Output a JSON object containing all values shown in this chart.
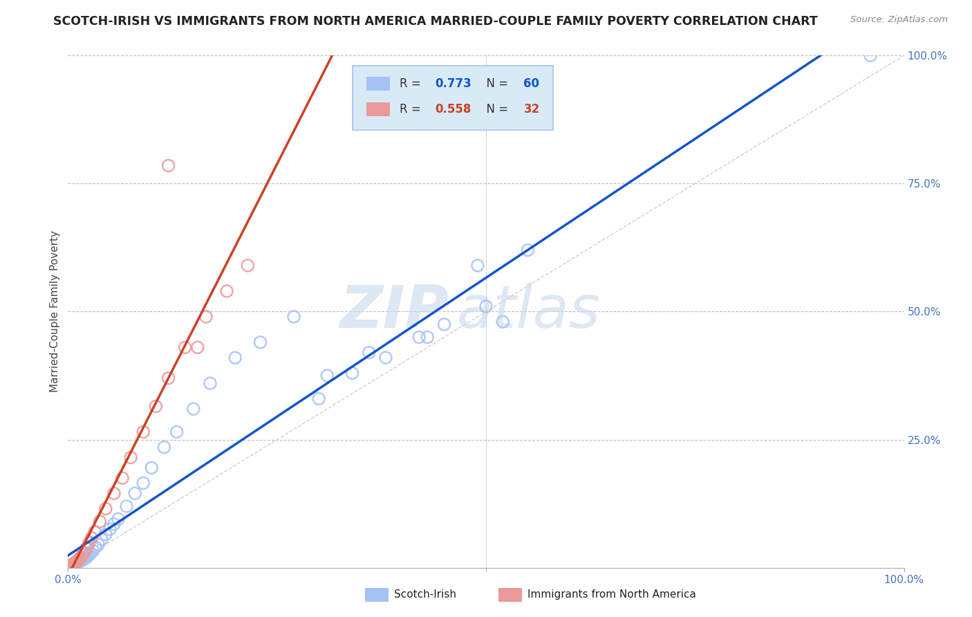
{
  "title": "SCOTCH-IRISH VS IMMIGRANTS FROM NORTH AMERICA MARRIED-COUPLE FAMILY POVERTY CORRELATION CHART",
  "source": "Source: ZipAtlas.com",
  "ylabel": "Married-Couple Family Poverty",
  "xlim": [
    0,
    1.0
  ],
  "ylim": [
    0,
    1.0
  ],
  "ytick_positions": [
    0.25,
    0.5,
    0.75,
    1.0
  ],
  "xtick_positions": [
    0.0,
    0.5,
    1.0
  ],
  "series1_name": "Scotch-Irish",
  "series1_color": "#a4c2f4",
  "series1_line_color": "#1155cc",
  "series1_R": "0.773",
  "series1_N": "60",
  "series2_name": "Immigrants from North America",
  "series2_color": "#ea9999",
  "series2_line_color": "#cc4125",
  "series2_R": "0.558",
  "series2_N": "32",
  "legend_facecolor": "#d9eaf7",
  "legend_edgecolor": "#a4c2f4",
  "background_color": "#ffffff",
  "grid_color": "#c0c0c0",
  "diagonal_color": "#d0d0d0",
  "title_color": "#222222",
  "source_color": "#888888",
  "tick_color": "#4472c4",
  "ylabel_color": "#444444",
  "series1_x": [
    0.002,
    0.003,
    0.004,
    0.005,
    0.005,
    0.006,
    0.007,
    0.007,
    0.008,
    0.008,
    0.009,
    0.01,
    0.01,
    0.011,
    0.012,
    0.013,
    0.014,
    0.015,
    0.016,
    0.017,
    0.018,
    0.019,
    0.02,
    0.021,
    0.022,
    0.023,
    0.025,
    0.027,
    0.03,
    0.033,
    0.036,
    0.04,
    0.045,
    0.05,
    0.055,
    0.06,
    0.07,
    0.08,
    0.09,
    0.1,
    0.115,
    0.13,
    0.15,
    0.17,
    0.2,
    0.23,
    0.27,
    0.31,
    0.36,
    0.42,
    0.3,
    0.34,
    0.38,
    0.45,
    0.5,
    0.52,
    0.43,
    0.49,
    0.55,
    0.96
  ],
  "series1_y": [
    0.002,
    0.003,
    0.004,
    0.004,
    0.005,
    0.005,
    0.006,
    0.007,
    0.007,
    0.008,
    0.008,
    0.009,
    0.01,
    0.01,
    0.011,
    0.012,
    0.013,
    0.013,
    0.014,
    0.015,
    0.016,
    0.017,
    0.018,
    0.019,
    0.02,
    0.022,
    0.025,
    0.028,
    0.033,
    0.04,
    0.045,
    0.055,
    0.065,
    0.075,
    0.085,
    0.095,
    0.12,
    0.145,
    0.165,
    0.195,
    0.235,
    0.265,
    0.31,
    0.36,
    0.41,
    0.44,
    0.49,
    0.375,
    0.42,
    0.45,
    0.33,
    0.38,
    0.41,
    0.475,
    0.51,
    0.48,
    0.45,
    0.59,
    0.62,
    1.0
  ],
  "series2_x": [
    0.002,
    0.003,
    0.005,
    0.006,
    0.007,
    0.008,
    0.009,
    0.01,
    0.011,
    0.012,
    0.013,
    0.015,
    0.017,
    0.019,
    0.022,
    0.025,
    0.028,
    0.032,
    0.038,
    0.045,
    0.055,
    0.065,
    0.075,
    0.09,
    0.105,
    0.12,
    0.14,
    0.165,
    0.19,
    0.215,
    0.12,
    0.155
  ],
  "series2_y": [
    0.003,
    0.004,
    0.006,
    0.007,
    0.008,
    0.009,
    0.01,
    0.011,
    0.013,
    0.015,
    0.017,
    0.02,
    0.025,
    0.03,
    0.038,
    0.048,
    0.058,
    0.07,
    0.09,
    0.115,
    0.145,
    0.175,
    0.215,
    0.265,
    0.315,
    0.37,
    0.43,
    0.49,
    0.54,
    0.59,
    0.785,
    0.43
  ]
}
